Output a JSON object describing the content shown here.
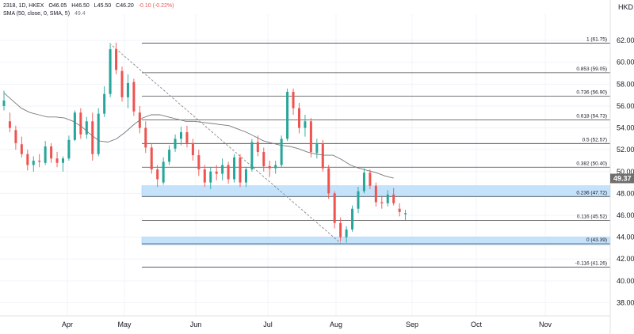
{
  "header": {
    "symbol": "2318, 1D, HKEX",
    "open": "O46.05",
    "high": "H46.50",
    "low": "L45.50",
    "close": "C46.20",
    "change": "-0.10 (-0.22%)",
    "sma_label": "SMA (50, close, 0, SMA, 5)",
    "sma_value": "49.4",
    "currency": "HKD"
  },
  "colors": {
    "up": "#26a69a",
    "down": "#ef5350",
    "sma": "#777777",
    "fib_line": "#444444",
    "zone": "#bbdefb",
    "sma_badge": "#6f6f6f"
  },
  "chart_data": {
    "type": "candlestick",
    "y_axis": {
      "ticks": [
        38,
        40,
        42,
        44,
        46,
        48,
        50,
        52,
        54,
        56,
        58,
        60,
        62
      ],
      "range": [
        36.8,
        64.4
      ]
    },
    "x_axis": {
      "months": [
        "Apr",
        "May",
        "Jun",
        "Jul",
        "Aug",
        "Sep",
        "Oct",
        "Nov"
      ]
    },
    "last_sma_value": "49.37",
    "fib_levels": [
      {
        "ratio": 1,
        "value": 61.75,
        "label": "1 (61.75)"
      },
      {
        "ratio": 0.853,
        "value": 59.05,
        "label": "0.853 (59.05)"
      },
      {
        "ratio": 0.736,
        "value": 56.9,
        "label": "0.736 (56.90)"
      },
      {
        "ratio": 0.618,
        "value": 54.73,
        "label": "0.618 (54.73)"
      },
      {
        "ratio": 0.5,
        "value": 52.57,
        "label": "0.5 (52.57)"
      },
      {
        "ratio": 0.382,
        "value": 50.4,
        "label": "0.382 (50.40)"
      },
      {
        "ratio": 0.236,
        "value": 47.72,
        "label": "0.236 (47.72)"
      },
      {
        "ratio": 0.116,
        "value": 45.52,
        "label": "0.116 (45.52)"
      },
      {
        "ratio": 0,
        "value": 43.39,
        "label": "0 (43.39)"
      },
      {
        "ratio": -0.116,
        "value": 41.26,
        "label": "-0.116 (41.26)"
      }
    ],
    "zones": [
      [
        47.7,
        48.7
      ],
      [
        43.3,
        44.0
      ]
    ],
    "trendline": {
      "from_value": 61.75,
      "to_value": 43.39
    },
    "sma": [
      57.2,
      56.5,
      55.8,
      55.4,
      55.2,
      55.0,
      55.0,
      54.9,
      54.6,
      54.1,
      53.4,
      52.8,
      52.7,
      53.0,
      53.6,
      54.3,
      54.9,
      55.2,
      55.2,
      55.0,
      54.8,
      54.6,
      54.6,
      54.5,
      54.4,
      54.3,
      54.2,
      53.9,
      53.6,
      53.2,
      52.8,
      52.6,
      52.4,
      52.3,
      52.1,
      51.8,
      51.6,
      51.5,
      51.5,
      51.1,
      50.6,
      50.3,
      50.1,
      49.9,
      49.6,
      49.4
    ],
    "candles": [
      [
        56.0,
        57.4,
        55.6,
        56.5
      ],
      [
        54.6,
        55.4,
        53.6,
        54.0
      ],
      [
        53.8,
        54.2,
        52.0,
        52.6
      ],
      [
        52.5,
        53.2,
        51.3,
        51.6
      ],
      [
        51.6,
        52.0,
        50.1,
        50.6
      ],
      [
        50.6,
        51.4,
        50.0,
        51.0
      ],
      [
        51.0,
        51.6,
        50.4,
        50.9
      ],
      [
        50.8,
        52.8,
        50.6,
        52.3
      ],
      [
        52.3,
        52.6,
        50.8,
        51.2
      ],
      [
        51.2,
        51.8,
        50.4,
        50.8
      ],
      [
        50.8,
        51.4,
        50.0,
        51.2
      ],
      [
        51.2,
        53.3,
        51.0,
        52.9
      ],
      [
        52.9,
        55.6,
        52.8,
        55.4
      ],
      [
        55.4,
        55.8,
        53.0,
        53.4
      ],
      [
        53.4,
        55.0,
        53.0,
        54.6
      ],
      [
        54.6,
        55.4,
        51.0,
        51.6
      ],
      [
        51.6,
        55.8,
        51.4,
        55.3
      ],
      [
        55.3,
        57.8,
        55.0,
        57.1
      ],
      [
        57.1,
        61.6,
        56.8,
        61.2
      ],
      [
        61.2,
        61.8,
        58.9,
        59.3
      ],
      [
        59.2,
        59.6,
        56.4,
        56.8
      ],
      [
        56.8,
        58.9,
        55.8,
        58.1
      ],
      [
        58.2,
        58.5,
        55.1,
        55.5
      ],
      [
        55.4,
        56.0,
        53.5,
        54.0
      ],
      [
        54.0,
        54.6,
        51.7,
        52.2
      ],
      [
        52.2,
        52.6,
        49.8,
        50.2
      ],
      [
        50.2,
        50.6,
        48.6,
        49.3
      ],
      [
        49.0,
        51.3,
        48.8,
        50.9
      ],
      [
        50.9,
        52.4,
        50.6,
        52.0
      ],
      [
        52.1,
        53.4,
        51.8,
        53.0
      ],
      [
        53.0,
        54.1,
        52.4,
        53.6
      ],
      [
        53.6,
        54.2,
        52.2,
        52.6
      ],
      [
        52.6,
        53.0,
        51.0,
        51.5
      ],
      [
        51.5,
        52.0,
        49.6,
        50.2
      ],
      [
        50.2,
        50.6,
        48.6,
        49.0
      ],
      [
        49.0,
        50.4,
        48.4,
        50.0
      ],
      [
        50.0,
        50.6,
        49.2,
        49.8
      ],
      [
        49.8,
        51.2,
        49.2,
        50.6
      ],
      [
        50.6,
        50.9,
        48.9,
        49.3
      ],
      [
        49.3,
        51.6,
        49.0,
        51.3
      ],
      [
        51.3,
        51.6,
        48.6,
        49.0
      ],
      [
        49.0,
        50.4,
        48.6,
        50.2
      ],
      [
        50.2,
        53.0,
        50.0,
        52.7
      ],
      [
        52.7,
        53.3,
        51.4,
        51.8
      ],
      [
        51.8,
        52.2,
        50.0,
        50.5
      ],
      [
        50.5,
        51.0,
        49.5,
        50.3
      ],
      [
        50.3,
        51.0,
        49.8,
        50.6
      ],
      [
        50.6,
        53.3,
        50.4,
        53.0
      ],
      [
        53.0,
        57.6,
        52.8,
        57.3
      ],
      [
        57.3,
        57.6,
        55.2,
        55.8
      ],
      [
        55.8,
        56.3,
        53.5,
        54.0
      ],
      [
        54.0,
        55.2,
        53.2,
        54.6
      ],
      [
        54.6,
        54.9,
        51.3,
        51.8
      ],
      [
        51.7,
        53.0,
        51.2,
        52.6
      ],
      [
        52.6,
        52.9,
        50.0,
        50.3
      ],
      [
        50.3,
        50.6,
        47.5,
        48.0
      ],
      [
        48.0,
        48.2,
        44.8,
        45.3
      ],
      [
        45.3,
        45.8,
        43.6,
        44.0
      ],
      [
        44.0,
        45.0,
        43.5,
        44.7
      ],
      [
        44.7,
        46.9,
        44.5,
        46.6
      ],
      [
        46.6,
        48.6,
        46.2,
        48.2
      ],
      [
        48.2,
        50.3,
        48.0,
        49.9
      ],
      [
        49.9,
        50.2,
        48.4,
        48.7
      ],
      [
        48.7,
        49.0,
        46.8,
        47.2
      ],
      [
        47.2,
        47.8,
        46.6,
        47.1
      ],
      [
        47.1,
        48.3,
        46.8,
        47.9
      ],
      [
        47.9,
        48.5,
        46.9,
        47.1
      ],
      [
        46.6,
        47.1,
        45.9,
        46.3
      ],
      [
        46.1,
        46.5,
        45.5,
        46.2
      ]
    ]
  }
}
